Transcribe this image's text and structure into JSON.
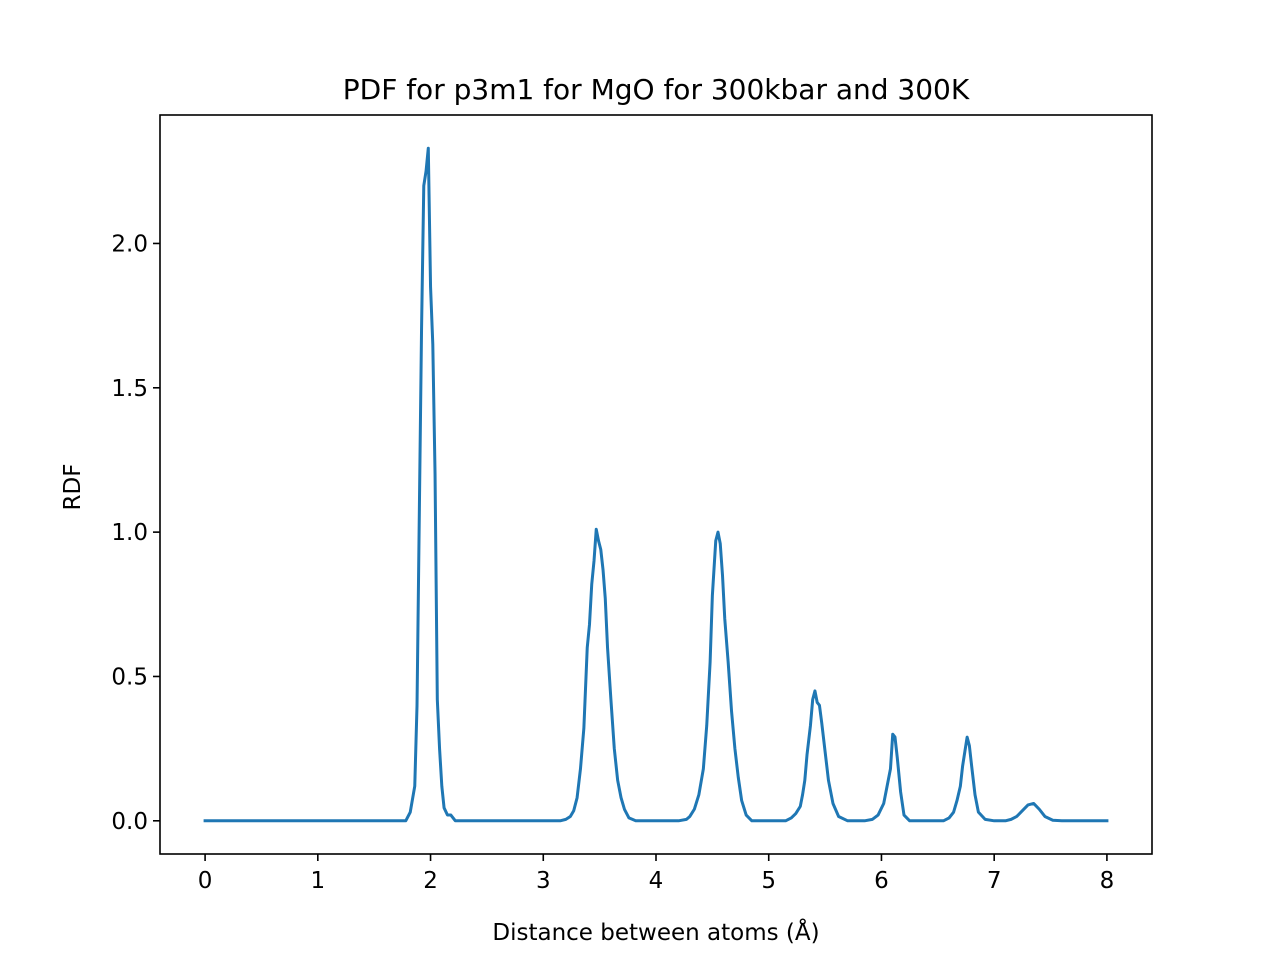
{
  "chart_data": {
    "type": "line",
    "title": "PDF for p3m1 for MgO for 300kbar and 300K",
    "xlabel": "Distance between atoms (Å)",
    "ylabel": "RDF",
    "xlim": [
      -0.4,
      8.4
    ],
    "ylim": [
      -0.115,
      2.445
    ],
    "xticks": [
      0,
      1,
      2,
      3,
      4,
      5,
      6,
      7,
      8
    ],
    "xtick_labels": [
      "0",
      "1",
      "2",
      "3",
      "4",
      "5",
      "6",
      "7",
      "8"
    ],
    "yticks": [
      0.0,
      0.5,
      1.0,
      1.5,
      2.0
    ],
    "ytick_labels": [
      "0.0",
      "0.5",
      "1.0",
      "1.5",
      "2.0"
    ],
    "grid": false,
    "legend": "none",
    "line_color": "#1f77b4",
    "series": [
      {
        "x": [
          0.0,
          0.5,
          1.0,
          1.5,
          1.78,
          1.82,
          1.86,
          1.88,
          1.9,
          1.92,
          1.94,
          1.96,
          1.98,
          2.0,
          2.02,
          2.04,
          2.06,
          2.08,
          2.1,
          2.12,
          2.15,
          2.18,
          2.22,
          2.3,
          2.6,
          3.0,
          3.1,
          3.15,
          3.2,
          3.24,
          3.27,
          3.3,
          3.33,
          3.36,
          3.39,
          3.41,
          3.43,
          3.45,
          3.47,
          3.49,
          3.51,
          3.53,
          3.55,
          3.57,
          3.6,
          3.63,
          3.66,
          3.69,
          3.72,
          3.76,
          3.82,
          4.0,
          4.2,
          4.27,
          4.3,
          4.34,
          4.38,
          4.42,
          4.45,
          4.48,
          4.5,
          4.53,
          4.55,
          4.57,
          4.59,
          4.61,
          4.64,
          4.67,
          4.7,
          4.73,
          4.76,
          4.8,
          4.85,
          5.0,
          5.15,
          5.2,
          5.24,
          5.28,
          5.3,
          5.32,
          5.34,
          5.37,
          5.39,
          5.41,
          5.43,
          5.45,
          5.47,
          5.5,
          5.53,
          5.57,
          5.62,
          5.7,
          5.85,
          5.92,
          5.97,
          6.02,
          6.05,
          6.08,
          6.1,
          6.12,
          6.14,
          6.17,
          6.2,
          6.25,
          6.4,
          6.55,
          6.6,
          6.64,
          6.67,
          6.7,
          6.72,
          6.74,
          6.76,
          6.78,
          6.8,
          6.83,
          6.86,
          6.92,
          7.0,
          7.1,
          7.15,
          7.2,
          7.25,
          7.3,
          7.35,
          7.4,
          7.45,
          7.52,
          7.6,
          8.0
        ],
        "y": [
          0.0,
          0.0,
          0.0,
          0.0,
          0.0,
          0.03,
          0.12,
          0.4,
          1.05,
          1.7,
          2.2,
          2.25,
          2.33,
          1.85,
          1.65,
          1.2,
          0.42,
          0.25,
          0.12,
          0.045,
          0.02,
          0.02,
          0.0,
          0.0,
          0.0,
          0.0,
          0.0,
          0.0,
          0.005,
          0.015,
          0.035,
          0.08,
          0.18,
          0.32,
          0.6,
          0.68,
          0.82,
          0.9,
          1.01,
          0.97,
          0.94,
          0.87,
          0.77,
          0.6,
          0.42,
          0.25,
          0.14,
          0.08,
          0.04,
          0.01,
          0.0,
          0.0,
          0.0,
          0.005,
          0.015,
          0.04,
          0.09,
          0.18,
          0.33,
          0.55,
          0.78,
          0.97,
          1.0,
          0.96,
          0.85,
          0.7,
          0.55,
          0.38,
          0.25,
          0.15,
          0.07,
          0.02,
          0.0,
          0.0,
          0.0,
          0.01,
          0.025,
          0.05,
          0.09,
          0.14,
          0.23,
          0.33,
          0.42,
          0.45,
          0.41,
          0.4,
          0.34,
          0.24,
          0.14,
          0.06,
          0.015,
          0.0,
          0.0,
          0.005,
          0.02,
          0.06,
          0.12,
          0.18,
          0.3,
          0.29,
          0.22,
          0.1,
          0.02,
          0.0,
          0.0,
          0.0,
          0.01,
          0.03,
          0.07,
          0.12,
          0.19,
          0.24,
          0.29,
          0.26,
          0.19,
          0.09,
          0.03,
          0.005,
          0.0,
          0.0,
          0.005,
          0.015,
          0.035,
          0.055,
          0.06,
          0.04,
          0.015,
          0.002,
          0.0,
          0.0
        ]
      }
    ]
  }
}
